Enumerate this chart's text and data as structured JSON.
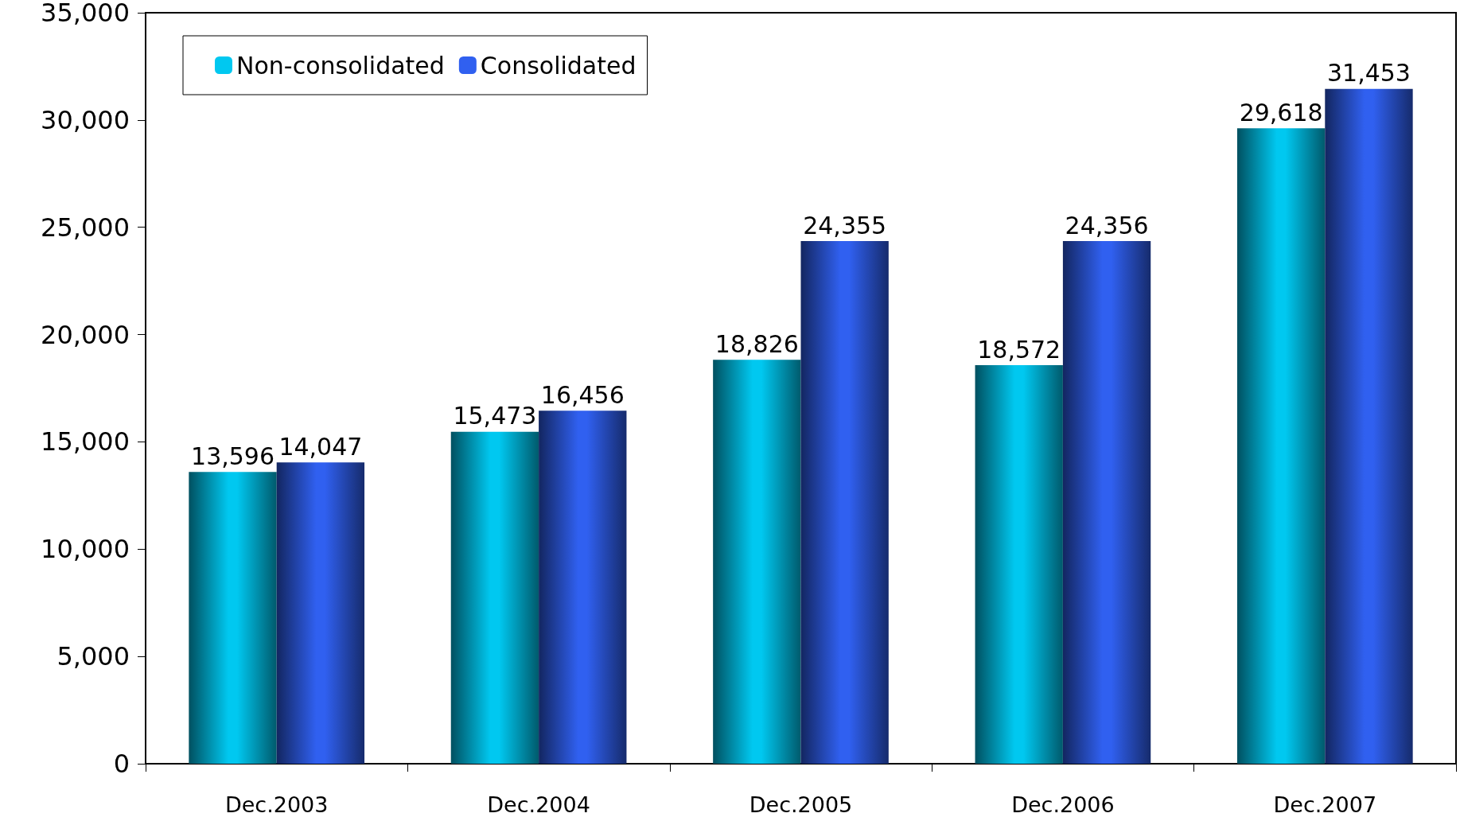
{
  "chart_data": {
    "type": "bar",
    "categories": [
      "Dec.2003",
      "Dec.2004",
      "Dec.2005",
      "Dec.2006",
      "Dec.2007"
    ],
    "series": [
      {
        "name": "Non-consolidated",
        "color": "#00c8f0",
        "values": [
          13596,
          15473,
          18826,
          18572,
          29618
        ],
        "value_labels": [
          "13,596",
          "15,473",
          "18,826",
          "18,572",
          "29,618"
        ]
      },
      {
        "name": "Consolidated",
        "color": "#3060f0",
        "values": [
          14047,
          16456,
          24355,
          24356,
          31453
        ],
        "value_labels": [
          "14,047",
          "16,456",
          "24,355",
          "24,356",
          "31,453"
        ]
      }
    ],
    "ylim": [
      0,
      35000
    ],
    "yticks": [
      0,
      {
        "value": 5000,
        "label": "5,000"
      },
      {
        "value": 10000,
        "label": "10,000"
      },
      {
        "value": 15000,
        "label": "15,000"
      },
      {
        "value": 20000,
        "label": "20,000"
      },
      {
        "value": 25000,
        "label": "25,000"
      },
      {
        "value": 30000,
        "label": "30,000"
      },
      {
        "value": 35000,
        "label": "35,000"
      }
    ],
    "grid": false,
    "legend": "top left"
  }
}
